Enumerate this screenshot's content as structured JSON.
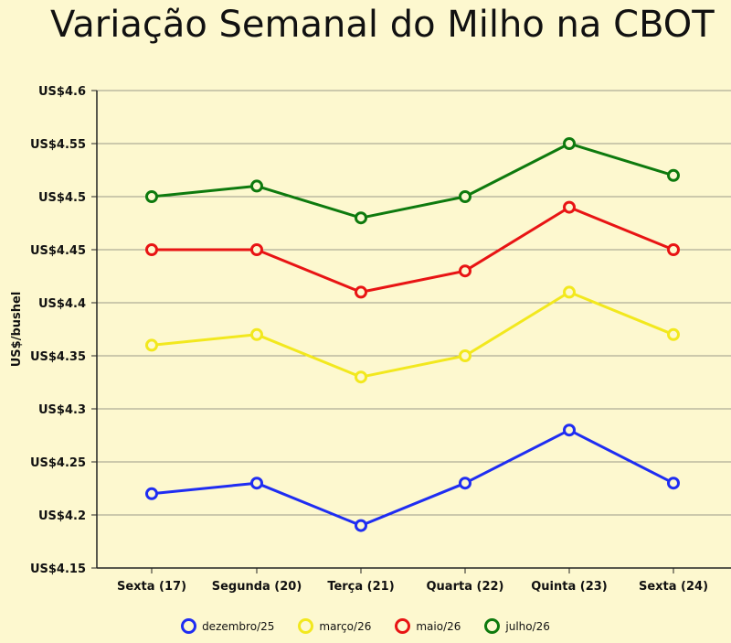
{
  "chart_data": {
    "type": "line",
    "title": "Variação Semanal do Milho na CBOT",
    "xlabel": "",
    "ylabel": "US$/bushel",
    "categories": [
      "Sexta (17)",
      "Segunda (20)",
      "Terça (21)",
      "Quarta (22)",
      "Quinta (23)",
      "Sexta (24)"
    ],
    "ylim": [
      4.15,
      4.6
    ],
    "yticks": [
      4.15,
      4.2,
      4.25,
      4.3,
      4.35,
      4.4,
      4.45,
      4.5,
      4.55,
      4.6
    ],
    "ytick_labels": [
      "US$4.15",
      "US$4.2",
      "US$4.25",
      "US$4.3",
      "US$4.35",
      "US$4.4",
      "US$4.45",
      "US$4.5",
      "US$4.55",
      "US$4.6"
    ],
    "grid": true,
    "legend_position": "bottom",
    "series": [
      {
        "name": "dezembro/25",
        "color": "#1f2df2",
        "values": [
          4.22,
          4.23,
          4.19,
          4.23,
          4.28,
          4.23
        ]
      },
      {
        "name": "março/26",
        "color": "#f2e81e",
        "values": [
          4.36,
          4.37,
          4.33,
          4.35,
          4.41,
          4.37
        ]
      },
      {
        "name": "maio/26",
        "color": "#e81414",
        "values": [
          4.45,
          4.45,
          4.41,
          4.43,
          4.49,
          4.45
        ]
      },
      {
        "name": "julho/26",
        "color": "#0e7a0e",
        "values": [
          4.5,
          4.51,
          4.48,
          4.5,
          4.55,
          4.52
        ]
      }
    ]
  }
}
